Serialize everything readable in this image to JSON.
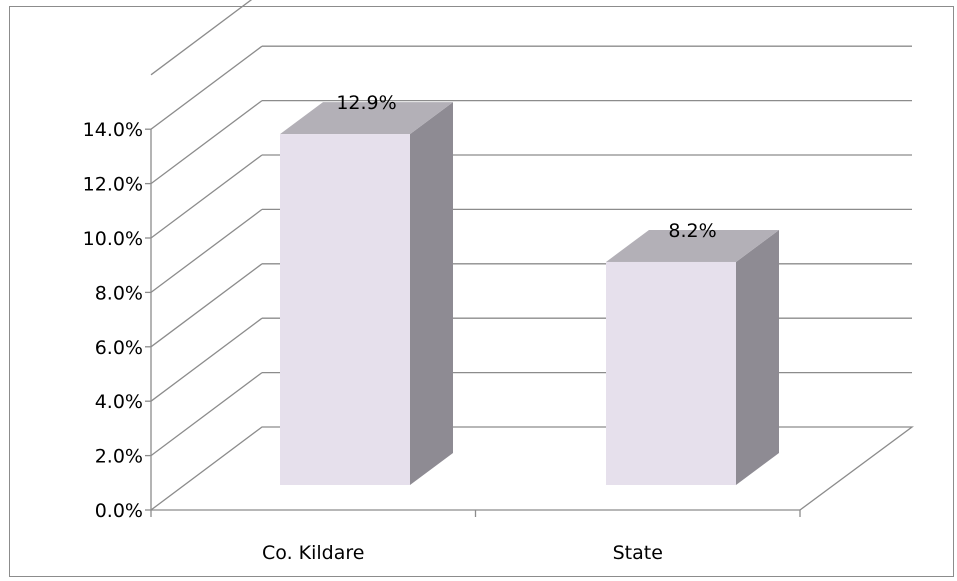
{
  "chart_data": {
    "type": "bar",
    "style": "3d-column",
    "categories": [
      "Co. Kildare",
      "State"
    ],
    "values": [
      12.9,
      8.2
    ],
    "data_labels": [
      "12.9%",
      "8.2%"
    ],
    "y_ticks": [
      "0.0%",
      "2.0%",
      "4.0%",
      "6.0%",
      "8.0%",
      "10.0%",
      "12.0%",
      "14.0%"
    ],
    "ylim": [
      0,
      14
    ],
    "grid": true,
    "legend": false,
    "title": "",
    "xlabel": "",
    "ylabel": ""
  },
  "colors": {
    "bar_front": "#e6e0ec",
    "bar_side": "#8e8b93",
    "bar_top": "#b3b0b7",
    "grid": "#8c8c8c",
    "axis": "#8c8c8c"
  }
}
